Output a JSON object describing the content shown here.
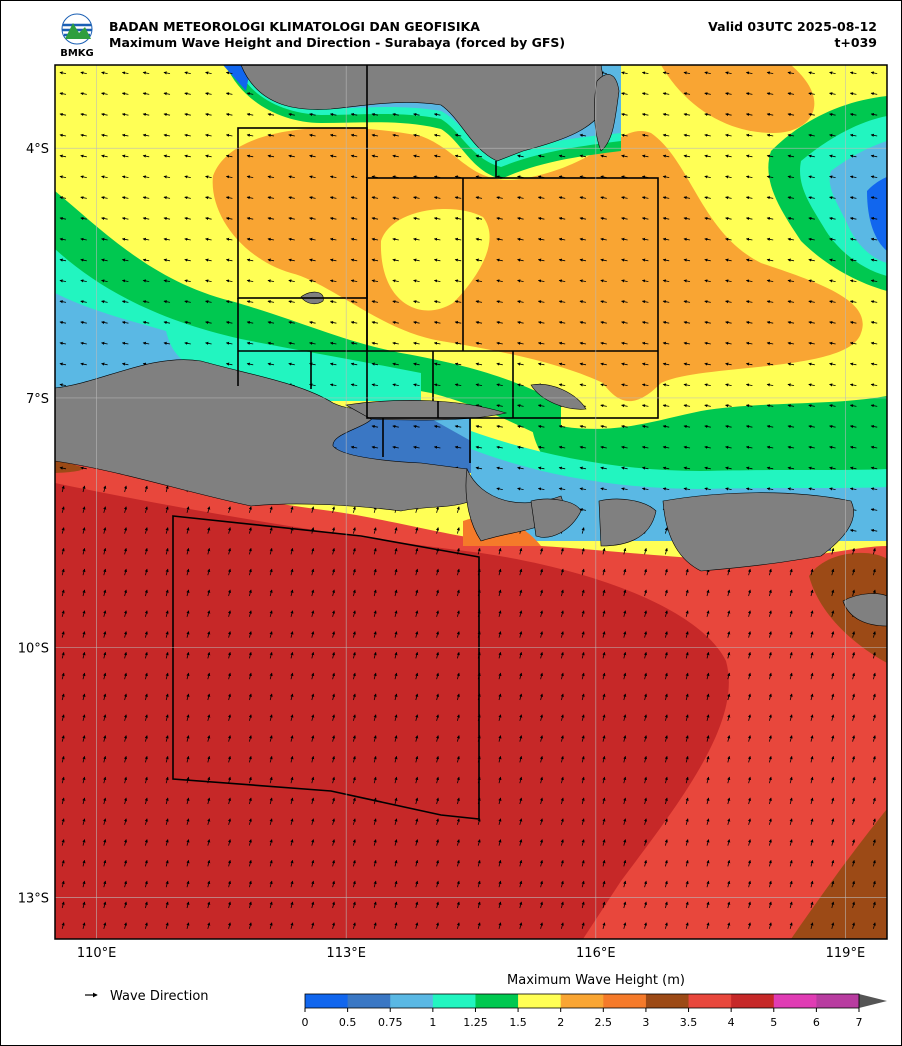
{
  "header": {
    "agency": "BADAN METEOROLOGI KLIMATOLOGI DAN GEOFISIKA",
    "title": "Maximum Wave Height and Direction - Surabaya (forced by GFS)",
    "valid": "Valid 03UTC 2025-08-12",
    "lead": "t+039",
    "logo_text": "BMKG"
  },
  "map": {
    "lon_range": [
      109.5,
      119.5
    ],
    "lat_range": [
      -3,
      -13.5
    ],
    "lon_ticks": [
      {
        "value": 110,
        "label": "110°E"
      },
      {
        "value": 113,
        "label": "113°E"
      },
      {
        "value": 116,
        "label": "116°E"
      },
      {
        "value": 119,
        "label": "119°E"
      }
    ],
    "lat_ticks": [
      {
        "value": -4,
        "label": "4°S"
      },
      {
        "value": -7,
        "label": "7°S"
      },
      {
        "value": -10,
        "label": "10°S"
      },
      {
        "value": -13,
        "label": "13°S"
      }
    ]
  },
  "legend": {
    "label": "Wave Direction"
  },
  "colorbar": {
    "title": "Maximum Wave Height (m)",
    "levels": [
      0,
      0.5,
      0.75,
      1,
      1.25,
      1.5,
      2,
      2.5,
      3,
      3.5,
      4,
      5,
      6,
      7
    ],
    "colors": [
      "#1166ee",
      "#3a77c4",
      "#5ab8e4",
      "#22f5c0",
      "#00c850",
      "#ffff55",
      "#f9a533",
      "#f57a2a",
      "#9c4a16",
      "#e8473c",
      "#c62828",
      "#e03cb4",
      "#b83ca0"
    ]
  }
}
